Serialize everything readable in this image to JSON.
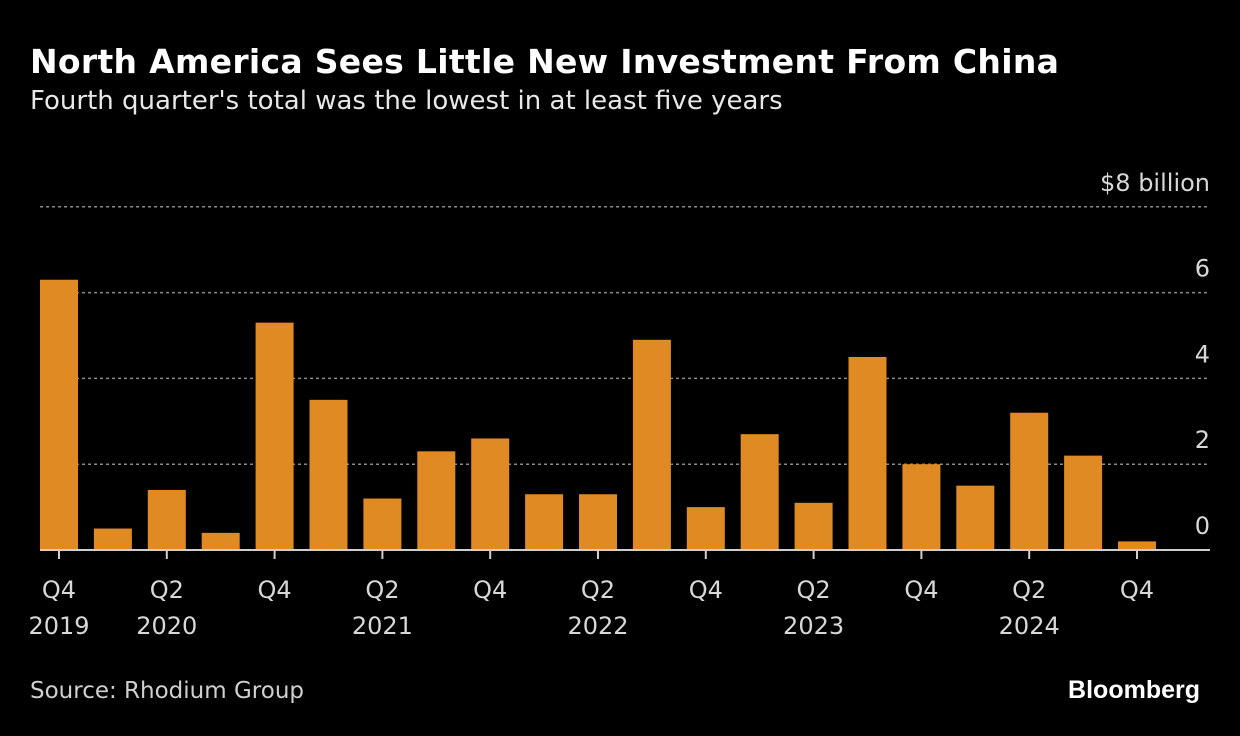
{
  "title": "North America Sees Little New Investment From China",
  "subtitle": "Fourth quarter's total was the lowest in at least five years",
  "source": "Source: Rhodium Group",
  "logo": "Bloomberg",
  "chart_data": {
    "type": "bar",
    "title": "North America Sees Little New Investment From China",
    "subtitle": "Fourth quarter's total was the lowest in at least five years",
    "ylabel": "$8 billion",
    "ylim": [
      0,
      8
    ],
    "yticks": [
      0,
      2,
      4,
      6,
      8
    ],
    "ytick_labels": [
      "0",
      "2",
      "4",
      "6",
      "$8 billion"
    ],
    "grid": true,
    "bar_color": "#e08a24",
    "categories": [
      "Q4 2019",
      "Q1 2020",
      "Q2 2020",
      "Q3 2020",
      "Q4 2020",
      "Q1 2021",
      "Q2 2021",
      "Q3 2021",
      "Q4 2021",
      "Q1 2022",
      "Q2 2022",
      "Q3 2022",
      "Q4 2022",
      "Q1 2023",
      "Q2 2023",
      "Q3 2023",
      "Q4 2023",
      "Q1 2024",
      "Q2 2024",
      "Q3 2024",
      "Q4 2024"
    ],
    "values": [
      6.3,
      0.5,
      1.4,
      0.4,
      5.3,
      3.5,
      1.2,
      2.3,
      2.6,
      1.3,
      1.3,
      4.9,
      1.0,
      2.7,
      1.1,
      4.5,
      2.0,
      1.5,
      3.2,
      2.2,
      0.2
    ],
    "xtick_labels": [
      {
        "index": 0,
        "q": "Q4",
        "year": "2019"
      },
      {
        "index": 2,
        "q": "Q2",
        "year": "2020"
      },
      {
        "index": 4,
        "q": "Q4",
        "year": ""
      },
      {
        "index": 6,
        "q": "Q2",
        "year": "2021"
      },
      {
        "index": 8,
        "q": "Q4",
        "year": ""
      },
      {
        "index": 10,
        "q": "Q2",
        "year": "2022"
      },
      {
        "index": 12,
        "q": "Q4",
        "year": ""
      },
      {
        "index": 14,
        "q": "Q2",
        "year": "2023"
      },
      {
        "index": 16,
        "q": "Q4",
        "year": ""
      },
      {
        "index": 18,
        "q": "Q2",
        "year": "2024"
      },
      {
        "index": 20,
        "q": "Q4",
        "year": ""
      }
    ]
  }
}
